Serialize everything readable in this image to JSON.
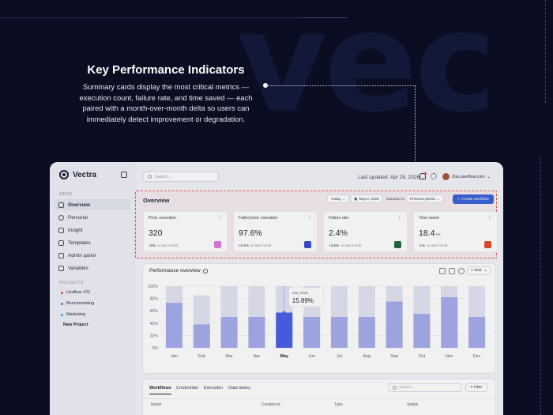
{
  "background": {
    "word": "vec",
    "accent": "#0b0e22"
  },
  "annotation": {
    "title": "Key Performance Indicators",
    "description": "Summary cards display the most critical metrics — execution count, failure rate, and time saved — each paired with a month-over-month delta so users can immediately detect improvement or degradation."
  },
  "app": {
    "name": "Vectra",
    "search_placeholder": "Search...",
    "last_updated": "Last updated: Apr 28, 2026",
    "user_email": "Zou.userflow.com",
    "sidebar": {
      "menu_label": "MENU",
      "items": [
        {
          "label": "Overview",
          "icon": "home-icon",
          "active": true
        },
        {
          "label": "Personal",
          "icon": "user-icon",
          "active": false
        },
        {
          "label": "Insight",
          "icon": "chart-icon",
          "active": false
        },
        {
          "label": "Templates",
          "icon": "template-icon",
          "active": false
        },
        {
          "label": "Admin panel",
          "icon": "admin-icon",
          "active": false
        },
        {
          "label": "Variables",
          "icon": "variables-icon",
          "active": false
        }
      ],
      "projects_label": "PROJECTS",
      "projects": [
        {
          "label": "Useflow 101",
          "color": "#e25b3b"
        },
        {
          "label": "Benchmarking",
          "color": "#5a6fe0"
        },
        {
          "label": "Marketing",
          "color": "#3fb2e0"
        }
      ],
      "new_project": "New Project"
    },
    "overview": {
      "title": "Overview",
      "period_select": "Today",
      "date": "May 8, 2026",
      "compare_label": "compare to",
      "compare_select": "Previous period",
      "create_button": "Create workflow"
    },
    "kpi_cards": [
      {
        "label": "Prod. execution",
        "value": "320",
        "unit": "",
        "delta": "+5%",
        "vs": "vs last month",
        "badge_color": "#e07ad8"
      },
      {
        "label": "Failed prod. execution",
        "value": "97.6%",
        "unit": "",
        "delta": "+0.2%",
        "vs": "vs last month",
        "badge_color": "#3a4fd0"
      },
      {
        "label": "Failure rate",
        "value": "2.4%",
        "unit": "",
        "delta": "+3.5%",
        "vs": "vs last month",
        "badge_color": "#1f6b3a"
      },
      {
        "label": "Time saved",
        "value": "18.4",
        "unit": "hrs",
        "delta": "-1%",
        "vs": "vs last month",
        "badge_color": "#e24a2b"
      }
    ],
    "performance": {
      "title": "Performance overview",
      "year_select": "1 Year",
      "tooltip": {
        "label": "May 2026",
        "value": "15.89%"
      }
    },
    "table": {
      "tabs": [
        "Workflows",
        "Credentials",
        "Execution",
        "Data tables"
      ],
      "search_placeholder": "Search...",
      "filter_label": "Filter",
      "columns": [
        "Name",
        "Created at",
        "Type",
        "Status"
      ]
    }
  },
  "chart_data": {
    "type": "bar",
    "categories": [
      "Jan",
      "Feb",
      "Mar",
      "Apr",
      "May",
      "Jun",
      "Jul",
      "Aug",
      "Sep",
      "Oct",
      "Nov",
      "Dec"
    ],
    "series": [
      {
        "values": [
          100,
          85,
          100,
          100,
          100,
          100,
          100,
          100,
          100,
          100,
          100,
          100
        ]
      },
      {
        "values": [
          73,
          38,
          50,
          50,
          57,
          50,
          50,
          50,
          75,
          55,
          82,
          50
        ]
      }
    ],
    "highlight_index": 4,
    "ytick_labels": [
      "100%",
      "80%",
      "60%",
      "40%",
      "20%",
      "0%"
    ],
    "ylim": [
      0,
      100
    ]
  }
}
